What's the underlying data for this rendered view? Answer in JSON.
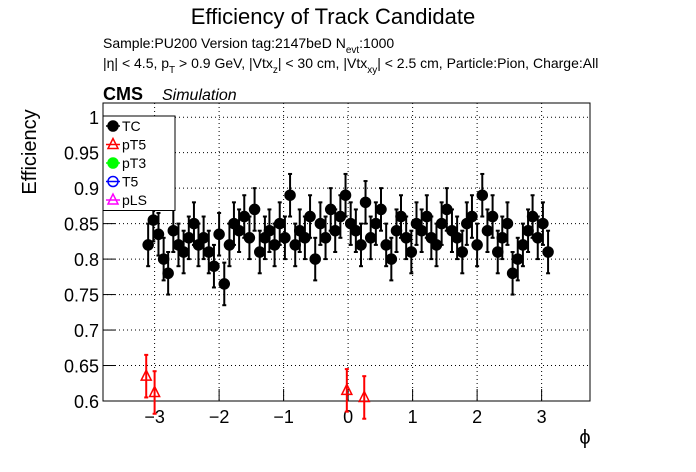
{
  "chart_data": {
    "type": "scatter",
    "title": "Efficiency of Track Candidate",
    "subtitle_1": [
      "Sample:PU200   Version tag:2147beD  N",
      "evt",
      ":1000"
    ],
    "subtitle_2": [
      "|η| < 4.5, p",
      "T",
      " > 0.9 GeV, |Vtx",
      "z",
      "| < 30 cm, |Vtx",
      "xy",
      "| < 2.5 cm, Particle:Pion, Charge:All"
    ],
    "experiment": "CMS",
    "status": "Simulation",
    "x_label": "ϕ",
    "y_label": "Efficiency",
    "xlim": [
      -3.8,
      3.75
    ],
    "ylim": [
      0.6,
      1.02
    ],
    "xticks": [
      {
        "value": -3,
        "label": "−3"
      },
      {
        "value": -2,
        "label": "−2"
      },
      {
        "value": -1,
        "label": "−1"
      },
      0,
      1,
      2,
      3
    ],
    "yticks": [
      0.6,
      0.65,
      0.7,
      0.75,
      0.8,
      0.85,
      0.9,
      0.95,
      1
    ],
    "grid": true,
    "legend": "upper left",
    "series": [
      {
        "name": "TC",
        "color": "#000000",
        "marker": "circle",
        "x": [
          -3.1,
          -3.02,
          -2.94,
          -2.86,
          -2.79,
          -2.71,
          -2.63,
          -2.55,
          -2.47,
          -2.39,
          -2.32,
          -2.24,
          -2.16,
          -2.08,
          -2.0,
          -1.92,
          -1.84,
          -1.77,
          -1.69,
          -1.61,
          -1.53,
          -1.45,
          -1.37,
          -1.29,
          -1.22,
          -1.14,
          -1.06,
          -0.98,
          -0.9,
          -0.82,
          -0.75,
          -0.67,
          -0.59,
          -0.51,
          -0.43,
          -0.35,
          -0.27,
          -0.2,
          -0.12,
          -0.04,
          0.04,
          0.12,
          0.2,
          0.27,
          0.35,
          0.43,
          0.51,
          0.59,
          0.67,
          0.75,
          0.82,
          0.9,
          0.98,
          1.06,
          1.14,
          1.22,
          1.29,
          1.37,
          1.45,
          1.53,
          1.61,
          1.69,
          1.77,
          1.84,
          1.92,
          2.0,
          2.08,
          2.16,
          2.24,
          2.32,
          2.39,
          2.47,
          2.55,
          2.63,
          2.71,
          2.79,
          2.86,
          2.94,
          3.02,
          3.1
        ],
        "values": [
          0.82,
          0.855,
          0.835,
          0.8,
          0.78,
          0.84,
          0.82,
          0.81,
          0.83,
          0.85,
          0.82,
          0.83,
          0.81,
          0.79,
          0.835,
          0.765,
          0.82,
          0.85,
          0.84,
          0.86,
          0.83,
          0.87,
          0.81,
          0.83,
          0.84,
          0.82,
          0.85,
          0.83,
          0.89,
          0.82,
          0.84,
          0.83,
          0.86,
          0.8,
          0.85,
          0.83,
          0.87,
          0.84,
          0.86,
          0.89,
          0.85,
          0.84,
          0.82,
          0.88,
          0.83,
          0.85,
          0.87,
          0.82,
          0.8,
          0.84,
          0.86,
          0.83,
          0.81,
          0.85,
          0.84,
          0.86,
          0.83,
          0.82,
          0.85,
          0.87,
          0.84,
          0.83,
          0.81,
          0.85,
          0.86,
          0.82,
          0.89,
          0.84,
          0.86,
          0.81,
          0.83,
          0.85,
          0.78,
          0.8,
          0.82,
          0.84,
          0.86,
          0.83,
          0.85,
          0.81
        ],
        "errors": [
          0.03,
          0.03,
          0.03,
          0.03,
          0.03,
          0.03,
          0.03,
          0.03,
          0.03,
          0.03,
          0.03,
          0.03,
          0.03,
          0.03,
          0.03,
          0.03,
          0.03,
          0.03,
          0.03,
          0.03,
          0.03,
          0.03,
          0.03,
          0.03,
          0.03,
          0.03,
          0.03,
          0.03,
          0.03,
          0.03,
          0.03,
          0.03,
          0.03,
          0.03,
          0.03,
          0.03,
          0.03,
          0.03,
          0.03,
          0.03,
          0.03,
          0.03,
          0.03,
          0.03,
          0.03,
          0.03,
          0.03,
          0.03,
          0.03,
          0.03,
          0.03,
          0.03,
          0.03,
          0.03,
          0.03,
          0.03,
          0.03,
          0.03,
          0.03,
          0.03,
          0.03,
          0.03,
          0.03,
          0.03,
          0.03,
          0.03,
          0.03,
          0.03,
          0.03,
          0.03,
          0.03,
          0.03,
          0.03,
          0.03,
          0.03,
          0.03,
          0.03,
          0.03,
          0.03,
          0.03
        ]
      },
      {
        "name": "pT5",
        "color": "#ff0000",
        "marker": "triangle-open",
        "x": [
          -3.13,
          -3.0,
          -0.02,
          0.25
        ],
        "values": [
          0.635,
          0.612,
          0.615,
          0.605
        ],
        "errors": [
          0.03,
          0.03,
          0.03,
          0.03
        ]
      },
      {
        "name": "pT3",
        "color": "#00ff00",
        "marker": "circle",
        "x": [],
        "values": [],
        "errors": []
      },
      {
        "name": "T5",
        "color": "#0000ff",
        "marker": "circle-open",
        "x": [],
        "values": [],
        "errors": []
      },
      {
        "name": "pLS",
        "color": "#ff00ff",
        "marker": "triangle-open",
        "x": [],
        "values": [],
        "errors": []
      }
    ]
  }
}
